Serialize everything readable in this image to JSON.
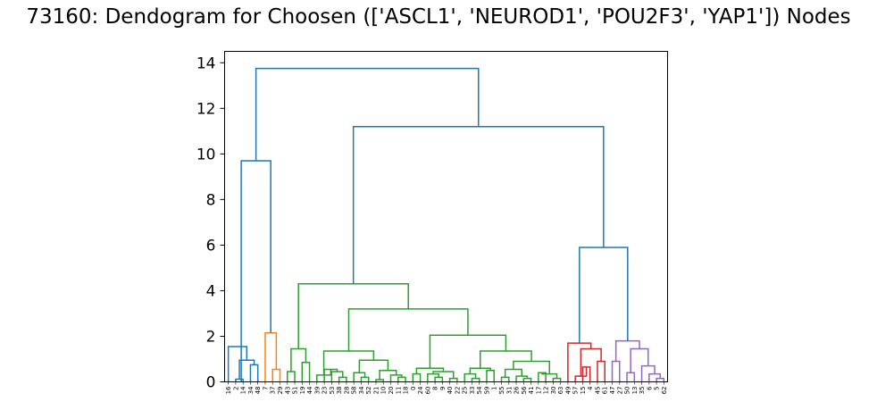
{
  "chart_data": {
    "type": "dendrogram",
    "title": "73160: Dendogram for Choosen (['ASCL1', 'NEUROD1', 'POU2F3', 'YAP1']) Nodes",
    "xlabel": "",
    "ylabel": "",
    "ylim": [
      0,
      14.5
    ],
    "yticks": [
      0,
      2,
      4,
      6,
      8,
      10,
      12,
      14
    ],
    "ytick_labels": [
      "0",
      "2",
      "4",
      "6",
      "8",
      "10",
      "12",
      "14"
    ],
    "leaves": [
      "16",
      "2",
      "14",
      "34",
      "48",
      "7",
      "37",
      "29",
      "43",
      "51",
      "19",
      "44",
      "39",
      "23",
      "53",
      "38",
      "28",
      "58",
      "34",
      "52",
      "21",
      "10",
      "20",
      "11",
      "18",
      "0",
      "24",
      "60",
      "8",
      "9",
      "40",
      "22",
      "25",
      "33",
      "54",
      "59",
      "1",
      "55",
      "31",
      "26",
      "56",
      "41",
      "17",
      "12",
      "30",
      "63",
      "49",
      "57",
      "15",
      "4",
      "45",
      "61",
      "47",
      "27",
      "50",
      "13",
      "35",
      "6",
      "5",
      "62"
    ],
    "colors": {
      "above_threshold": "#1f77b4",
      "cluster_orange": "#ff7f0e",
      "cluster_green": "#2ca02c",
      "cluster_red": "#d62728",
      "cluster_purple": "#9467bd"
    },
    "merges": [
      {
        "x": [
          1,
          2
        ],
        "h": 0.12,
        "color": "#1f77b4"
      },
      {
        "x": [
          3,
          4
        ],
        "h": 0.75,
        "color": "#1f77b4"
      },
      {
        "x": [
          1.5,
          3.5
        ],
        "h": 0.95,
        "color": "#1f77b4"
      },
      {
        "x": [
          0,
          2.5
        ],
        "h": 1.55,
        "color": "#1f77b4"
      },
      {
        "x": [
          6,
          7
        ],
        "h": 0.55,
        "color": "#ff7f0e"
      },
      {
        "x": [
          5,
          6.5
        ],
        "h": 2.15,
        "color": "#ff7f0e"
      },
      {
        "x": [
          8,
          9
        ],
        "h": 0.45,
        "color": "#2ca02c"
      },
      {
        "x": [
          10,
          11
        ],
        "h": 0.85,
        "color": "#2ca02c"
      },
      {
        "x": [
          8.5,
          10.5
        ],
        "h": 1.45,
        "color": "#2ca02c"
      },
      {
        "x": [
          15,
          16
        ],
        "h": 0.2,
        "color": "#2ca02c"
      },
      {
        "x": [
          14,
          15.5
        ],
        "h": 0.45,
        "color": "#2ca02c"
      },
      {
        "x": [
          13,
          14.75
        ],
        "h": 0.55,
        "color": "#2ca02c"
      },
      {
        "x": [
          12,
          13.875
        ],
        "h": 0.3,
        "color": "#2ca02c"
      },
      {
        "x": [
          18,
          19
        ],
        "h": 0.2,
        "color": "#2ca02c"
      },
      {
        "x": [
          17,
          18.5
        ],
        "h": 0.4,
        "color": "#2ca02c"
      },
      {
        "x": [
          20,
          21
        ],
        "h": 0.1,
        "color": "#2ca02c"
      },
      {
        "x": [
          23,
          24
        ],
        "h": 0.2,
        "color": "#2ca02c"
      },
      {
        "x": [
          22,
          23.5
        ],
        "h": 0.3,
        "color": "#2ca02c"
      },
      {
        "x": [
          20.5,
          22.75
        ],
        "h": 0.5,
        "color": "#2ca02c"
      },
      {
        "x": [
          17.75,
          21.625
        ],
        "h": 0.95,
        "color": "#2ca02c"
      },
      {
        "x": [
          12.9375,
          19.6875
        ],
        "h": 1.35,
        "color": "#2ca02c"
      },
      {
        "x": [
          25,
          26
        ],
        "h": 0.35,
        "color": "#2ca02c"
      },
      {
        "x": [
          28,
          29
        ],
        "h": 0.2,
        "color": "#2ca02c"
      },
      {
        "x": [
          27,
          28.5
        ],
        "h": 0.35,
        "color": "#2ca02c"
      },
      {
        "x": [
          30,
          31
        ],
        "h": 0.15,
        "color": "#2ca02c"
      },
      {
        "x": [
          27.75,
          30.5
        ],
        "h": 0.45,
        "color": "#2ca02c"
      },
      {
        "x": [
          25.5,
          29.125
        ],
        "h": 0.6,
        "color": "#2ca02c"
      },
      {
        "x": [
          33,
          34
        ],
        "h": 0.15,
        "color": "#2ca02c"
      },
      {
        "x": [
          32,
          33.5
        ],
        "h": 0.35,
        "color": "#2ca02c"
      },
      {
        "x": [
          35,
          36
        ],
        "h": 0.5,
        "color": "#2ca02c"
      },
      {
        "x": [
          32.75,
          35.5
        ],
        "h": 0.6,
        "color": "#2ca02c"
      },
      {
        "x": [
          37,
          38
        ],
        "h": 0.2,
        "color": "#2ca02c"
      },
      {
        "x": [
          40,
          41
        ],
        "h": 0.15,
        "color": "#2ca02c"
      },
      {
        "x": [
          39,
          40.5
        ],
        "h": 0.25,
        "color": "#2ca02c"
      },
      {
        "x": [
          37.5,
          39.75
        ],
        "h": 0.55,
        "color": "#2ca02c"
      },
      {
        "x": [
          42,
          43
        ],
        "h": 0.4,
        "color": "#2ca02c"
      },
      {
        "x": [
          44,
          45
        ],
        "h": 0.15,
        "color": "#2ca02c"
      },
      {
        "x": [
          42.5,
          44.5
        ],
        "h": 0.35,
        "color": "#2ca02c"
      },
      {
        "x": [
          38.625,
          43.5
        ],
        "h": 0.9,
        "color": "#2ca02c"
      },
      {
        "x": [
          34.125,
          41.0625
        ],
        "h": 1.35,
        "color": "#2ca02c"
      },
      {
        "x": [
          27.3125,
          37.59375
        ],
        "h": 2.05,
        "color": "#2ca02c"
      },
      {
        "x": [
          16.3125,
          32.453125
        ],
        "h": 3.2,
        "color": "#2ca02c"
      },
      {
        "x": [
          9.5,
          24.3828125
        ],
        "h": 4.3,
        "color": "#2ca02c"
      },
      {
        "x": [
          48,
          49
        ],
        "h": 0.65,
        "color": "#d62728"
      },
      {
        "x": [
          47,
          48.5
        ],
        "h": 0.25,
        "color": "#d62728"
      },
      {
        "x": [
          50,
          51
        ],
        "h": 0.9,
        "color": "#d62728"
      },
      {
        "x": [
          47.75,
          50.5
        ],
        "h": 1.45,
        "color": "#d62728"
      },
      {
        "x": [
          46,
          49.125
        ],
        "h": 1.7,
        "color": "#d62728"
      },
      {
        "x": [
          52,
          53
        ],
        "h": 0.9,
        "color": "#9467bd"
      },
      {
        "x": [
          54,
          55
        ],
        "h": 0.4,
        "color": "#9467bd"
      },
      {
        "x": [
          58,
          59
        ],
        "h": 0.15,
        "color": "#9467bd"
      },
      {
        "x": [
          57,
          58.5
        ],
        "h": 0.35,
        "color": "#9467bd"
      },
      {
        "x": [
          56,
          57.75
        ],
        "h": 0.7,
        "color": "#9467bd"
      },
      {
        "x": [
          54.5,
          56.875
        ],
        "h": 1.45,
        "color": "#9467bd"
      },
      {
        "x": [
          52.5,
          55.6875
        ],
        "h": 1.8,
        "color": "#9467bd"
      },
      {
        "x": [
          47.5625,
          54.09375
        ],
        "h": 5.9,
        "color": "#1f77b4"
      },
      {
        "x": [
          16.94140625,
          50.828125
        ],
        "h": 11.2,
        "color": "#1f77b4"
      },
      {
        "x": [
          1.75,
          5.75
        ],
        "h": 9.7,
        "color": "#1f77b4"
      },
      {
        "x": [
          3.75,
          33.884765625
        ],
        "h": 13.75,
        "color": "#1f77b4"
      }
    ]
  }
}
